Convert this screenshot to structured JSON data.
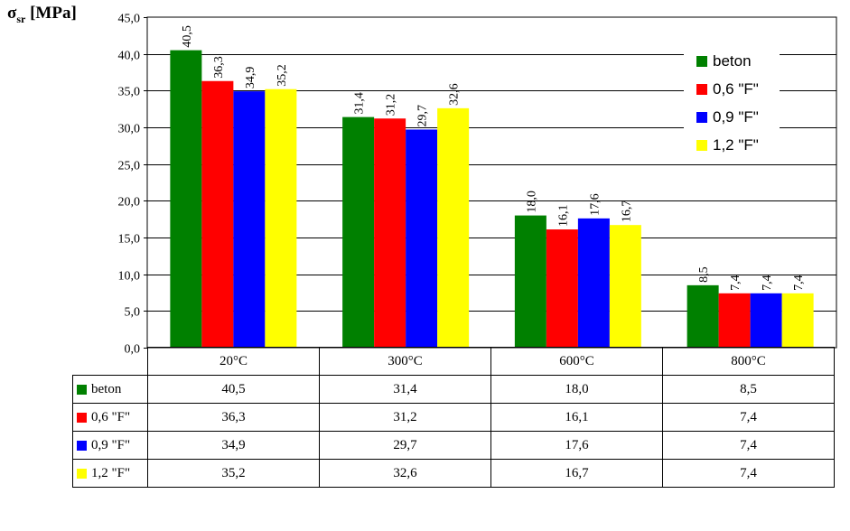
{
  "chart_data": {
    "type": "bar",
    "ylabel_main": "σ",
    "ylabel_sub": "sr",
    "ylabel_unit": "[MPa]",
    "categories": [
      "20°C",
      "300°C",
      "600°C",
      "800°C"
    ],
    "ylim": [
      0,
      45
    ],
    "yticks": [
      "0,0",
      "5,0",
      "10,0",
      "15,0",
      "20,0",
      "25,0",
      "30,0",
      "35,0",
      "40,0",
      "45,0"
    ],
    "grid": true,
    "legend_position": "right",
    "series": [
      {
        "name": "beton",
        "color": "#008000",
        "values": [
          40.5,
          31.4,
          18.0,
          8.5
        ],
        "labels": [
          "40,5",
          "31,4",
          "18,0",
          "8,5"
        ]
      },
      {
        "name": "0,6 \"F\"",
        "color": "#ff0000",
        "values": [
          36.3,
          31.2,
          16.1,
          7.4
        ],
        "labels": [
          "36,3",
          "31,2",
          "16,1",
          "7,4"
        ]
      },
      {
        "name": "0,9 \"F\"",
        "color": "#0000ff",
        "values": [
          34.9,
          29.7,
          17.6,
          7.4
        ],
        "labels": [
          "34,9",
          "29,7",
          "17,6",
          "7,4"
        ]
      },
      {
        "name": "1,2 \"F\"",
        "color": "#ffff00",
        "values": [
          35.2,
          32.6,
          16.7,
          7.4
        ],
        "labels": [
          "35,2",
          "32,6",
          "16,7",
          "7,4"
        ]
      }
    ]
  }
}
